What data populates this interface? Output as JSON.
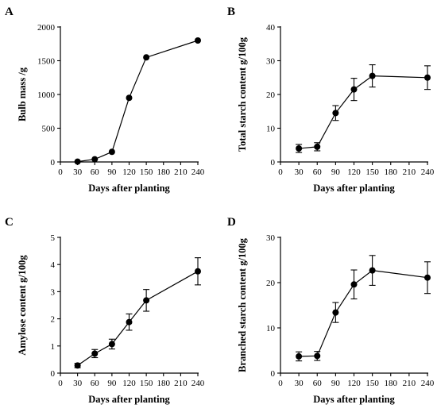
{
  "chart_data": [
    {
      "type": "line",
      "panel": "A",
      "x": [
        30,
        60,
        90,
        120,
        150,
        240
      ],
      "values": [
        5,
        40,
        150,
        950,
        1550,
        1800
      ],
      "errors": [
        0,
        0,
        0,
        0,
        0,
        0
      ],
      "xlabel": "Days after planting",
      "ylabel": "Bulb mass /g",
      "xlim": [
        0,
        240
      ],
      "ylim": [
        0,
        2000
      ],
      "xticks": [
        0,
        30,
        60,
        90,
        120,
        150,
        180,
        210,
        240
      ],
      "yticks": [
        0,
        500,
        1000,
        1500,
        2000
      ],
      "grid": false
    },
    {
      "type": "line",
      "panel": "B",
      "x": [
        30,
        60,
        90,
        120,
        150,
        240
      ],
      "values": [
        4.0,
        4.5,
        14.5,
        21.5,
        25.5,
        25.0
      ],
      "errors": [
        1.2,
        1.2,
        2.2,
        3.3,
        3.3,
        3.5
      ],
      "xlabel": "Days after planting",
      "ylabel": "Total starch content g/100g",
      "xlim": [
        0,
        240
      ],
      "ylim": [
        0,
        40
      ],
      "xticks": [
        0,
        30,
        60,
        90,
        120,
        150,
        180,
        210,
        240
      ],
      "yticks": [
        0,
        10,
        20,
        30,
        40
      ],
      "grid": false
    },
    {
      "type": "line",
      "panel": "C",
      "x": [
        30,
        60,
        90,
        120,
        150,
        240
      ],
      "values": [
        0.28,
        0.72,
        1.07,
        1.88,
        2.68,
        3.75
      ],
      "errors": [
        0.08,
        0.15,
        0.18,
        0.3,
        0.4,
        0.5
      ],
      "xlabel": "Days after planting",
      "ylabel": "Amylose content g/100g",
      "xlim": [
        0,
        240
      ],
      "ylim": [
        0,
        5
      ],
      "xticks": [
        0,
        30,
        60,
        90,
        120,
        150,
        180,
        210,
        240
      ],
      "yticks": [
        0,
        1,
        2,
        3,
        4,
        5
      ],
      "grid": false
    },
    {
      "type": "line",
      "panel": "D",
      "x": [
        30,
        60,
        90,
        120,
        150,
        240
      ],
      "values": [
        3.7,
        3.8,
        13.4,
        19.6,
        22.7,
        21.1
      ],
      "errors": [
        1.0,
        1.0,
        2.2,
        3.2,
        3.3,
        3.5
      ],
      "xlabel": "Days after planting",
      "ylabel": "Branched starch content g/100g",
      "xlim": [
        0,
        240
      ],
      "ylim": [
        0,
        30
      ],
      "xticks": [
        0,
        30,
        60,
        90,
        120,
        150,
        180,
        210,
        240
      ],
      "yticks": [
        0,
        10,
        20,
        30
      ],
      "grid": false
    }
  ]
}
